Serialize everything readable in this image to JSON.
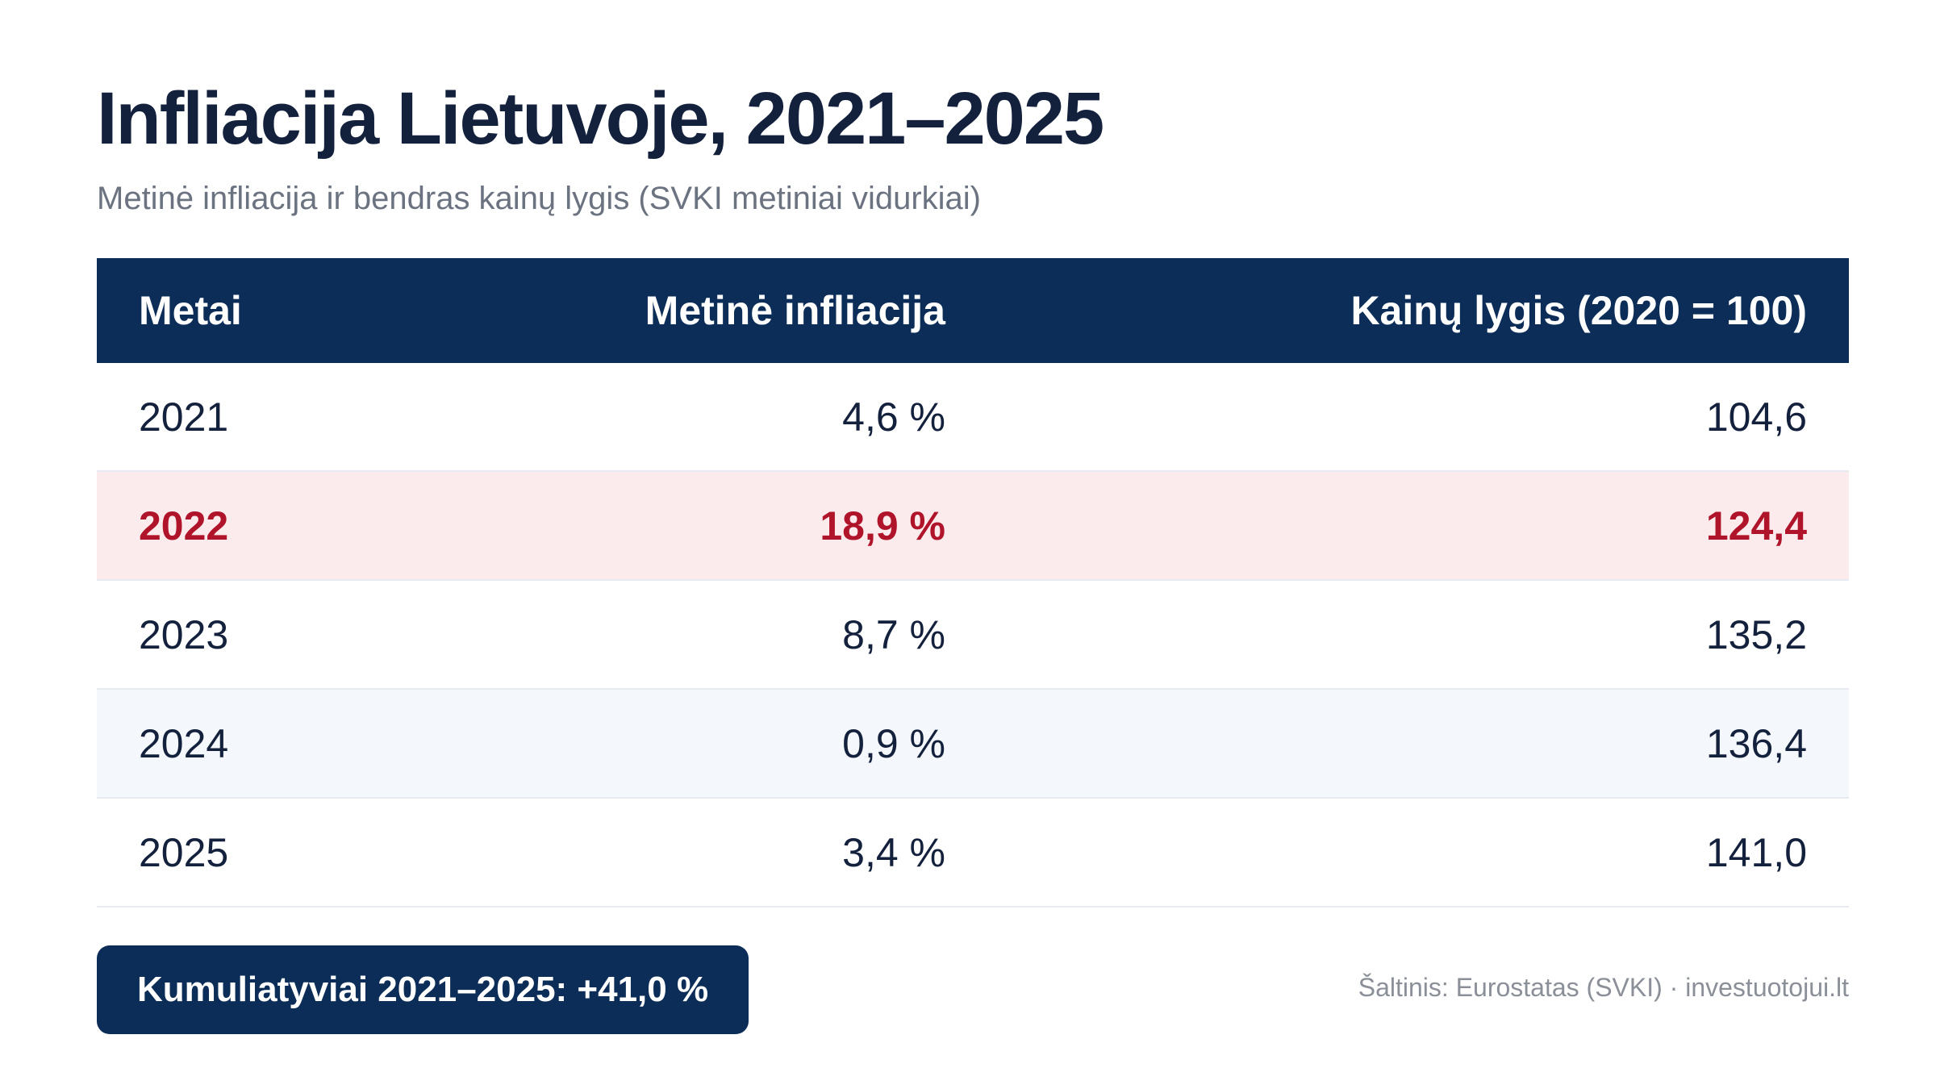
{
  "title": "Infliacija Lietuvoje, 2021–2025",
  "subtitle": "Metinė infliacija ir bendras kainų lygis (SVKI metiniai vidurkiai)",
  "table": {
    "headers": {
      "year": "Metai",
      "inflation": "Metinė infliacija",
      "price_level": "Kainų lygis (2020 = 100)"
    },
    "rows": [
      {
        "year": "2021",
        "inflation": "4,6 %",
        "price_level": "104,6"
      },
      {
        "year": "2022",
        "inflation": "18,9 %",
        "price_level": "124,4"
      },
      {
        "year": "2023",
        "inflation": "8,7 %",
        "price_level": "135,2"
      },
      {
        "year": "2024",
        "inflation": "0,9 %",
        "price_level": "136,4"
      },
      {
        "year": "2025",
        "inflation": "3,4 %",
        "price_level": "141,0"
      }
    ]
  },
  "summary": "Kumuliatyviai 2021–2025: +41,0 %",
  "source": "Šaltinis: Eurostatas (SVKI) · investuotojui.lt",
  "colors": {
    "header_bg": "#0c2d57",
    "highlight_bg": "#fcebec",
    "highlight_text": "#b0142a",
    "alt_row_bg": "#f4f7fb",
    "text": "#14213d",
    "muted": "#6b7280"
  }
}
